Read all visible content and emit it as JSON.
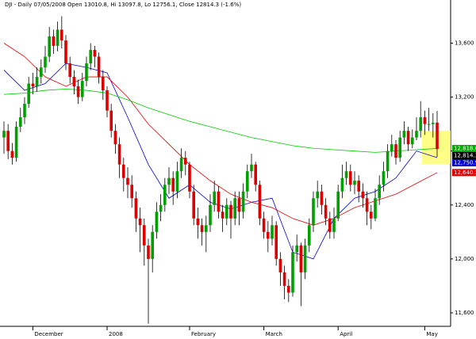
{
  "chart_data": {
    "type": "candlestick",
    "title": "DJI - Daily 07/05/2008 Open 13010.8, Hi 13097.8, Lo 12756.1, Close 12814.3 (-1.6%)",
    "up_color": "#00a000",
    "down_color": "#dd0000",
    "open": [
      12900,
      12950,
      12800,
      12750,
      12980,
      13050,
      13150,
      13300,
      13280,
      13350,
      13420,
      13500,
      13650,
      13580,
      13700,
      13620,
      13450,
      13350,
      13280,
      13200,
      13320,
      13450,
      13550,
      13500,
      13350,
      13250,
      13100,
      12950,
      12850,
      12700,
      12600,
      12550,
      12450,
      12300,
      12250,
      12100,
      12000,
      12200,
      12350,
      12400,
      12550,
      12600,
      12500,
      12650,
      12750,
      12700,
      12500,
      12300,
      12250,
      12200,
      12250,
      12400,
      12500,
      12350,
      12300,
      12400,
      12300,
      12450,
      12350,
      12500,
      12650,
      12700,
      12550,
      12300,
      12200,
      12150,
      12250,
      12000,
      11900,
      11800,
      11750,
      12050,
      12100,
      11900,
      12100,
      12250,
      12450,
      12500,
      12400,
      12300,
      12200,
      12300,
      12500,
      12600,
      12650,
      12550,
      12580,
      12500,
      12450,
      12350,
      12300,
      12450,
      12550,
      12650,
      12800,
      12850,
      12750,
      12900,
      12950,
      12850,
      12900,
      12950,
      13050,
      13000,
      13000,
      13010.8
    ],
    "high": [
      13020,
      13000,
      12860,
      13020,
      13120,
      13200,
      13350,
      13380,
      13420,
      13480,
      13580,
      13720,
      13700,
      13760,
      13800,
      13660,
      13500,
      13400,
      13330,
      13380,
      13500,
      13600,
      13580,
      13530,
      13400,
      13280,
      13150,
      13000,
      12900,
      12750,
      12680,
      12620,
      12500,
      12380,
      12300,
      12150,
      12250,
      12420,
      12480,
      12600,
      12680,
      12650,
      12720,
      12820,
      12800,
      12720,
      12550,
      12380,
      12300,
      12320,
      12480,
      12580,
      12540,
      12400,
      12450,
      12430,
      12500,
      12500,
      12560,
      12700,
      12780,
      12720,
      12580,
      12350,
      12280,
      12320,
      12280,
      12050,
      11950,
      11850,
      12100,
      12180,
      12120,
      12150,
      12300,
      12500,
      12580,
      12550,
      12450,
      12350,
      12380,
      12550,
      12700,
      12720,
      12700,
      12650,
      12620,
      12560,
      12500,
      12400,
      12520,
      12620,
      12720,
      12850,
      12920,
      12880,
      12950,
      13020,
      12980,
      12960,
      13050,
      13170,
      13100,
      13120,
      13080,
      13097.8
    ],
    "low": [
      12780,
      12740,
      12700,
      12720,
      12940,
      13000,
      13120,
      13220,
      13240,
      13300,
      13380,
      13460,
      13520,
      13540,
      13560,
      13400,
      13300,
      13220,
      13150,
      13170,
      13280,
      13400,
      13420,
      13300,
      13180,
      13050,
      12900,
      12780,
      12600,
      12500,
      12450,
      12380,
      12200,
      12050,
      11950,
      11520,
      11900,
      12150,
      12280,
      12350,
      12480,
      12400,
      12450,
      12600,
      12620,
      12450,
      12250,
      12150,
      12100,
      12050,
      12200,
      12350,
      12300,
      12200,
      12250,
      12150,
      12250,
      12250,
      12300,
      12450,
      12600,
      12500,
      12250,
      12150,
      12050,
      12100,
      11950,
      11800,
      11700,
      11680,
      11720,
      11980,
      11650,
      11850,
      12050,
      12200,
      12380,
      12330,
      12250,
      12150,
      12150,
      12280,
      12450,
      12550,
      12500,
      12480,
      12420,
      12380,
      12250,
      12220,
      12280,
      12400,
      12500,
      12600,
      12760,
      12700,
      12720,
      12850,
      12800,
      12820,
      12880,
      12900,
      12920,
      12950,
      12900,
      12756.1
    ],
    "close": [
      12950,
      12800,
      12750,
      12980,
      13050,
      13150,
      13300,
      13280,
      13350,
      13420,
      13500,
      13650,
      13580,
      13700,
      13620,
      13450,
      13350,
      13280,
      13200,
      13320,
      13450,
      13550,
      13500,
      13350,
      13250,
      13100,
      12950,
      12850,
      12700,
      12600,
      12550,
      12450,
      12300,
      12250,
      12100,
      12000,
      12200,
      12350,
      12400,
      12550,
      12600,
      12500,
      12650,
      12750,
      12700,
      12500,
      12300,
      12250,
      12200,
      12250,
      12400,
      12500,
      12350,
      12300,
      12400,
      12300,
      12450,
      12350,
      12500,
      12650,
      12700,
      12550,
      12300,
      12200,
      12150,
      12250,
      12000,
      11900,
      11800,
      11750,
      12050,
      12100,
      11900,
      12100,
      12250,
      12450,
      12500,
      12400,
      12300,
      12200,
      12300,
      12500,
      12600,
      12650,
      12550,
      12580,
      12500,
      12450,
      12350,
      12300,
      12450,
      12550,
      12650,
      12800,
      12850,
      12750,
      12900,
      12950,
      12850,
      12900,
      12950,
      13050,
      13000,
      13000,
      13010,
      12814.3
    ],
    "ma_x": [
      0,
      5,
      10,
      15,
      20,
      25,
      30,
      35,
      40,
      45,
      50,
      55,
      60,
      65,
      70,
      75,
      80,
      85,
      90,
      95,
      100,
      105
    ],
    "series": [
      {
        "name": "MA20",
        "color": "#0000cc",
        "values": [
          13400,
          13250,
          13300,
          13450,
          13420,
          13380,
          13050,
          12700,
          12450,
          12550,
          12420,
          12370,
          12420,
          12450,
          12050,
          12000,
          12300,
          12450,
          12500,
          12600,
          12800,
          12751
        ]
      },
      {
        "name": "MA50",
        "color": "#e00000",
        "values": [
          13600,
          13500,
          13350,
          13280,
          13350,
          13350,
          13200,
          13000,
          12850,
          12700,
          12580,
          12480,
          12420,
          12380,
          12300,
          12250,
          12300,
          12380,
          12430,
          12480,
          12560,
          12640
        ]
      },
      {
        "name": "MA200",
        "color": "#00cc00",
        "values": [
          13220,
          13230,
          13250,
          13260,
          13250,
          13230,
          13180,
          13120,
          13070,
          13020,
          12980,
          12940,
          12900,
          12870,
          12840,
          12820,
          12810,
          12800,
          12790,
          12800,
          12810,
          12819
        ]
      }
    ],
    "last_labels": [
      {
        "value": 12814.3,
        "label": "12,814.3",
        "color": "#000000"
      },
      {
        "value": 12818.6,
        "label": "12,818.6",
        "color": "#00aa00"
      },
      {
        "value": 12750.9,
        "label": "12,750.9",
        "color": "#0000cc"
      },
      {
        "value": 12640.2,
        "label": "12,640.2",
        "color": "#dd0000"
      }
    ],
    "ylim": [
      11500,
      13920
    ],
    "yticks": [
      {
        "value": 11600,
        "label": "11,600"
      },
      {
        "value": 12000,
        "label": "12,000"
      },
      {
        "value": 12400,
        "label": "12,400"
      },
      {
        "value": 12800,
        "label": "12,800"
      },
      {
        "value": 13200,
        "label": "13,200"
      },
      {
        "value": 13600,
        "label": "13,600"
      }
    ],
    "x_labels": [
      {
        "index": 7,
        "label": "December"
      },
      {
        "index": 25,
        "label": "2008"
      },
      {
        "index": 45,
        "label": "February"
      },
      {
        "index": 63,
        "label": "March"
      },
      {
        "index": 81,
        "label": "April"
      },
      {
        "index": 102,
        "label": "May"
      }
    ]
  }
}
